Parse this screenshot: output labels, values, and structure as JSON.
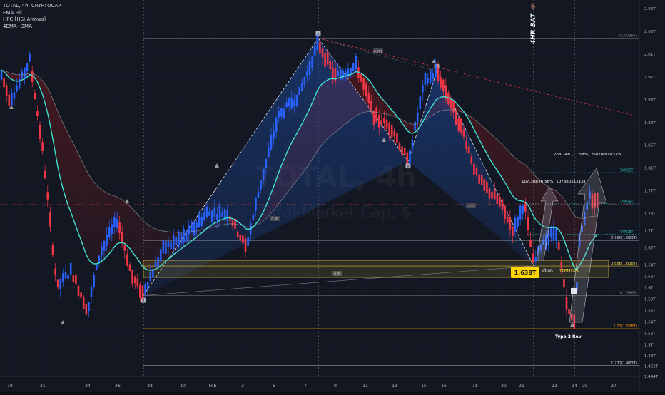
{
  "legend": {
    "symbol_line": "TOTAL, 4h, CRYPTOCAP",
    "indicators": [
      "EMA Fill",
      "HPC [HSI-Arrows]",
      "4EMA+3MA"
    ]
  },
  "watermark": {
    "ticker": "TOTAL, 4h",
    "name": "Total Market Cap, $"
  },
  "pattern_title": "4HR BAT 🦇",
  "chart_data": {
    "type": "candlestick",
    "y_axis": {
      "min": 1.444,
      "max": 2.09,
      "ticks": [
        "2.09T",
        "2.05T",
        "2.01T",
        "1.97T",
        "1.93T",
        "1.89T",
        "1.85T",
        "1.81T",
        "1.77T",
        "1.73T",
        "1.7T",
        "1.67T",
        "1.64T",
        "1.62T",
        "1.6T",
        "1.58T",
        "1.56T",
        "1.54T",
        "1.52T",
        "1.5T",
        "1.48T",
        "1.462T",
        "1.444T"
      ]
    },
    "x_axis": {
      "ticks": [
        "19",
        "21",
        "24",
        "26",
        "28",
        "30",
        "Feb",
        "3",
        "5",
        "7",
        "9",
        "11",
        "13",
        "15",
        "16",
        "18",
        "20",
        "21",
        "23",
        "24",
        "25",
        "27"
      ]
    },
    "fib_levels": [
      {
        "label": "0(2.038T)",
        "value": 2.038,
        "color": "#787b86"
      },
      {
        "label": "0.786(1.683T)",
        "value": 1.683,
        "color": "#d1d4dc"
      },
      {
        "label": "0.886(1.638T)",
        "value": 1.638,
        "color": "#f5d142"
      },
      {
        "label": "1(1.586T)",
        "value": 1.586,
        "color": "#787b86"
      },
      {
        "label": "1.13(1.528T)",
        "value": 1.528,
        "color": "#ff9800"
      },
      {
        "label": "1.272(1.463T)",
        "value": 1.463,
        "color": "#d1d4dc"
      }
    ],
    "targets": [
      {
        "label": "TARGET",
        "value": 1.802,
        "badge": "1.802T",
        "color": "#26a69a"
      },
      {
        "label": "TARGET",
        "value": 1.747,
        "badge": "1.747T",
        "color": "#26a69a"
      },
      {
        "label": "TARGET",
        "value": 1.694,
        "badge": "1.694T",
        "color": "#26a69a"
      }
    ],
    "price_badge": {
      "value": "1.746T",
      "sub": "02:01:01"
    },
    "prz_label": "1.638T",
    "annotations": [
      {
        "text": "268.24B (17.58%) 26824010717B"
      },
      {
        "text": "107.38B (6.56%) 10738021213T"
      },
      {
        "text": "ction"
      },
      {
        "text": "TERMINAL"
      },
      {
        "text": "Type 2 Rev"
      }
    ],
    "pivots": [
      "X",
      "A",
      "B",
      "C",
      "D"
    ],
    "ratio_tags": [
      "0.798",
      "0.49",
      "2.02",
      "0.95"
    ]
  },
  "colors": {
    "bull": "#2962ff",
    "bear": "#f23645",
    "ema_fast": "#40e0d0",
    "ema_slow": "#9e9e9e",
    "background": "#131722"
  }
}
